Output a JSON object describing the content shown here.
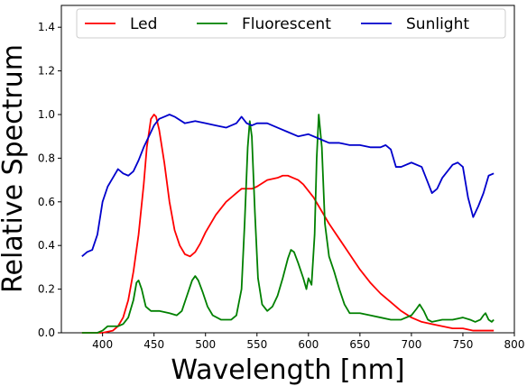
{
  "chart_data": {
    "type": "line",
    "title": "",
    "xlabel": "Wavelength [nm]",
    "ylabel": "Relative Spectrum",
    "xlim": [
      360,
      800
    ],
    "ylim": [
      0,
      1.5
    ],
    "xticks": [
      400,
      450,
      500,
      550,
      600,
      650,
      700,
      750,
      800
    ],
    "yticks": [
      0.0,
      0.2,
      0.4,
      0.6,
      0.8,
      1.0,
      1.2,
      1.4
    ],
    "xtick_labels": [
      "400",
      "450",
      "500",
      "550",
      "600",
      "650",
      "700",
      "750",
      "800"
    ],
    "ytick_labels": [
      "0.0",
      "0.2",
      "0.4",
      "0.6",
      "0.8",
      "1.0",
      "1.2",
      "1.4"
    ],
    "grid": false,
    "legend_position": "top",
    "series": [
      {
        "name": "Led",
        "color": "#ff0000",
        "points": [
          [
            380,
            0.0
          ],
          [
            400,
            0.0
          ],
          [
            410,
            0.01
          ],
          [
            415,
            0.03
          ],
          [
            420,
            0.07
          ],
          [
            425,
            0.15
          ],
          [
            430,
            0.28
          ],
          [
            435,
            0.45
          ],
          [
            440,
            0.68
          ],
          [
            443,
            0.85
          ],
          [
            447,
            0.98
          ],
          [
            450,
            1.0
          ],
          [
            452,
            0.99
          ],
          [
            455,
            0.93
          ],
          [
            460,
            0.78
          ],
          [
            465,
            0.6
          ],
          [
            470,
            0.47
          ],
          [
            475,
            0.4
          ],
          [
            480,
            0.36
          ],
          [
            485,
            0.35
          ],
          [
            490,
            0.37
          ],
          [
            495,
            0.41
          ],
          [
            500,
            0.46
          ],
          [
            510,
            0.54
          ],
          [
            520,
            0.6
          ],
          [
            530,
            0.64
          ],
          [
            535,
            0.66
          ],
          [
            540,
            0.66
          ],
          [
            545,
            0.66
          ],
          [
            550,
            0.67
          ],
          [
            560,
            0.7
          ],
          [
            570,
            0.71
          ],
          [
            575,
            0.72
          ],
          [
            580,
            0.72
          ],
          [
            585,
            0.71
          ],
          [
            590,
            0.7
          ],
          [
            595,
            0.68
          ],
          [
            600,
            0.65
          ],
          [
            605,
            0.62
          ],
          [
            610,
            0.58
          ],
          [
            615,
            0.54
          ],
          [
            620,
            0.5
          ],
          [
            630,
            0.43
          ],
          [
            640,
            0.36
          ],
          [
            650,
            0.29
          ],
          [
            660,
            0.23
          ],
          [
            670,
            0.18
          ],
          [
            680,
            0.14
          ],
          [
            690,
            0.1
          ],
          [
            700,
            0.07
          ],
          [
            710,
            0.05
          ],
          [
            720,
            0.04
          ],
          [
            730,
            0.03
          ],
          [
            740,
            0.02
          ],
          [
            750,
            0.02
          ],
          [
            760,
            0.01
          ],
          [
            770,
            0.01
          ],
          [
            780,
            0.01
          ]
        ]
      },
      {
        "name": "Fluorescent",
        "color": "#008000",
        "points": [
          [
            380,
            0.0
          ],
          [
            395,
            0.0
          ],
          [
            400,
            0.01
          ],
          [
            405,
            0.03
          ],
          [
            410,
            0.03
          ],
          [
            415,
            0.03
          ],
          [
            420,
            0.04
          ],
          [
            425,
            0.07
          ],
          [
            430,
            0.15
          ],
          [
            433,
            0.23
          ],
          [
            435,
            0.24
          ],
          [
            438,
            0.2
          ],
          [
            442,
            0.12
          ],
          [
            447,
            0.1
          ],
          [
            455,
            0.1
          ],
          [
            465,
            0.09
          ],
          [
            472,
            0.08
          ],
          [
            477,
            0.1
          ],
          [
            482,
            0.17
          ],
          [
            487,
            0.24
          ],
          [
            490,
            0.26
          ],
          [
            493,
            0.24
          ],
          [
            497,
            0.19
          ],
          [
            502,
            0.12
          ],
          [
            507,
            0.08
          ],
          [
            515,
            0.06
          ],
          [
            525,
            0.06
          ],
          [
            530,
            0.08
          ],
          [
            535,
            0.2
          ],
          [
            538,
            0.5
          ],
          [
            541,
            0.85
          ],
          [
            543,
            0.97
          ],
          [
            545,
            0.9
          ],
          [
            548,
            0.55
          ],
          [
            551,
            0.25
          ],
          [
            555,
            0.13
          ],
          [
            560,
            0.1
          ],
          [
            565,
            0.12
          ],
          [
            570,
            0.17
          ],
          [
            575,
            0.25
          ],
          [
            580,
            0.34
          ],
          [
            583,
            0.38
          ],
          [
            586,
            0.37
          ],
          [
            590,
            0.32
          ],
          [
            595,
            0.25
          ],
          [
            598,
            0.2
          ],
          [
            600,
            0.25
          ],
          [
            603,
            0.22
          ],
          [
            606,
            0.45
          ],
          [
            608,
            0.8
          ],
          [
            610,
            1.0
          ],
          [
            613,
            0.85
          ],
          [
            616,
            0.5
          ],
          [
            620,
            0.35
          ],
          [
            625,
            0.28
          ],
          [
            630,
            0.2
          ],
          [
            635,
            0.13
          ],
          [
            640,
            0.09
          ],
          [
            650,
            0.09
          ],
          [
            660,
            0.08
          ],
          [
            670,
            0.07
          ],
          [
            680,
            0.06
          ],
          [
            690,
            0.06
          ],
          [
            700,
            0.08
          ],
          [
            705,
            0.11
          ],
          [
            708,
            0.13
          ],
          [
            712,
            0.1
          ],
          [
            716,
            0.06
          ],
          [
            720,
            0.05
          ],
          [
            730,
            0.06
          ],
          [
            740,
            0.06
          ],
          [
            750,
            0.07
          ],
          [
            757,
            0.06
          ],
          [
            762,
            0.05
          ],
          [
            767,
            0.06
          ],
          [
            770,
            0.08
          ],
          [
            772,
            0.09
          ],
          [
            775,
            0.06
          ],
          [
            778,
            0.05
          ],
          [
            780,
            0.06
          ]
        ]
      },
      {
        "name": "Sunlight",
        "color": "#0000cc",
        "points": [
          [
            380,
            0.35
          ],
          [
            385,
            0.37
          ],
          [
            390,
            0.38
          ],
          [
            395,
            0.45
          ],
          [
            400,
            0.6
          ],
          [
            405,
            0.67
          ],
          [
            410,
            0.71
          ],
          [
            415,
            0.75
          ],
          [
            420,
            0.73
          ],
          [
            425,
            0.72
          ],
          [
            430,
            0.74
          ],
          [
            435,
            0.79
          ],
          [
            440,
            0.85
          ],
          [
            445,
            0.9
          ],
          [
            450,
            0.95
          ],
          [
            455,
            0.98
          ],
          [
            460,
            0.99
          ],
          [
            465,
            1.0
          ],
          [
            470,
            0.99
          ],
          [
            480,
            0.96
          ],
          [
            490,
            0.97
          ],
          [
            500,
            0.96
          ],
          [
            510,
            0.95
          ],
          [
            520,
            0.94
          ],
          [
            530,
            0.96
          ],
          [
            535,
            0.99
          ],
          [
            540,
            0.96
          ],
          [
            545,
            0.95
          ],
          [
            550,
            0.96
          ],
          [
            560,
            0.96
          ],
          [
            570,
            0.94
          ],
          [
            580,
            0.92
          ],
          [
            590,
            0.9
          ],
          [
            600,
            0.91
          ],
          [
            610,
            0.89
          ],
          [
            620,
            0.87
          ],
          [
            630,
            0.87
          ],
          [
            640,
            0.86
          ],
          [
            650,
            0.86
          ],
          [
            660,
            0.85
          ],
          [
            670,
            0.85
          ],
          [
            675,
            0.86
          ],
          [
            680,
            0.84
          ],
          [
            685,
            0.76
          ],
          [
            690,
            0.76
          ],
          [
            700,
            0.78
          ],
          [
            710,
            0.76
          ],
          [
            715,
            0.7
          ],
          [
            720,
            0.64
          ],
          [
            725,
            0.66
          ],
          [
            730,
            0.71
          ],
          [
            740,
            0.77
          ],
          [
            745,
            0.78
          ],
          [
            750,
            0.76
          ],
          [
            755,
            0.62
          ],
          [
            760,
            0.53
          ],
          [
            765,
            0.58
          ],
          [
            770,
            0.64
          ],
          [
            775,
            0.72
          ],
          [
            780,
            0.73
          ]
        ]
      }
    ]
  }
}
